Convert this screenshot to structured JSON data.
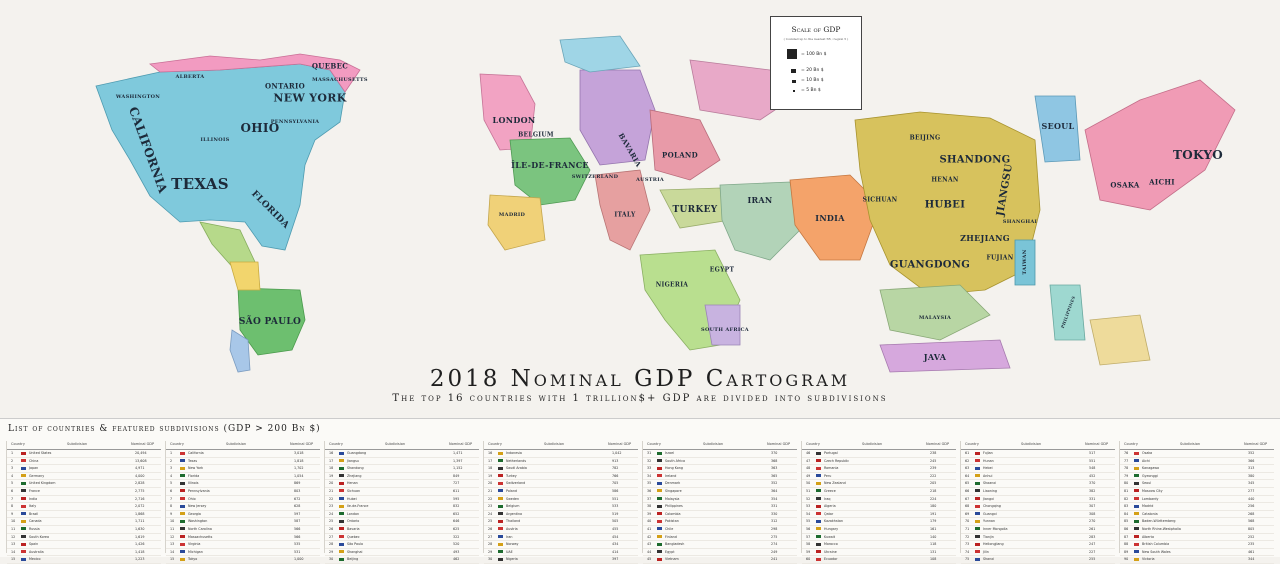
{
  "title": "2018 Nominal GDP Cartogram",
  "subtitle": "The top 16 countries with 1 trillion$+ GDP are divided into subdivisions",
  "legend": {
    "title": "Scale of GDP",
    "subtitle": "( rounded up to the nearest 5B ; region 5 )",
    "items": [
      "= 100 Bn $",
      "= 20 Bn $",
      "= 10 Bn $",
      "= 5 Bn $"
    ]
  },
  "regions": [
    {
      "name": "California",
      "color": "#7fc9dc"
    },
    {
      "name": "Texas",
      "color": "#7fc9dc"
    },
    {
      "name": "New York",
      "color": "#7fc9dc"
    },
    {
      "name": "Ohio",
      "color": "#7fc9dc"
    },
    {
      "name": "Florida",
      "color": "#7fc9dc"
    },
    {
      "name": "Washington",
      "color": "#7fc9dc"
    },
    {
      "name": "Illinois",
      "color": "#7fc9dc"
    },
    {
      "name": "Pennsylvania",
      "color": "#7fc9dc"
    },
    {
      "name": "Massachusetts",
      "color": "#7fc9dc"
    },
    {
      "name": "Ontario",
      "color": "#f29bc1"
    },
    {
      "name": "Quebec",
      "color": "#f29bc1"
    },
    {
      "name": "Alberta",
      "color": "#f29bc1"
    },
    {
      "name": "São Paulo",
      "color": "#6dbf6f"
    },
    {
      "name": "London",
      "color": "#f2a3c3"
    },
    {
      "name": "Île-de-France",
      "color": "#7bc47f"
    },
    {
      "name": "Bavaria",
      "color": "#c5a3d9"
    },
    {
      "name": "Belgium",
      "color": "#9fd09a"
    },
    {
      "name": "Switzerland",
      "color": "#b8d88c"
    },
    {
      "name": "Austria",
      "color": "#c7d6a4"
    },
    {
      "name": "Poland",
      "color": "#e89aa8"
    },
    {
      "name": "Italy",
      "color": "#e6a0a0"
    },
    {
      "name": "Madrid",
      "color": "#f0d178"
    },
    {
      "name": "Turkey",
      "color": "#c9d99a"
    },
    {
      "name": "Iran",
      "color": "#b2d3b8"
    },
    {
      "name": "Egypt",
      "color": "#c7dca5"
    },
    {
      "name": "Nigeria",
      "color": "#b9df8f"
    },
    {
      "name": "South Africa",
      "color": "#c8b3e0"
    },
    {
      "name": "India",
      "color": "#f4a36a"
    },
    {
      "name": "Beijing",
      "color": "#d7c25d"
    },
    {
      "name": "Shandong",
      "color": "#d7c25d"
    },
    {
      "name": "Jiangsu",
      "color": "#d7c25d"
    },
    {
      "name": "Zhejiang",
      "color": "#d7c25d"
    },
    {
      "name": "Guangdong",
      "color": "#d7c25d"
    },
    {
      "name": "Hubei",
      "color": "#d7c25d"
    },
    {
      "name": "Sichuan",
      "color": "#d7c25d"
    },
    {
      "name": "Henan",
      "color": "#d7c25d"
    },
    {
      "name": "Fujian",
      "color": "#d7c25d"
    },
    {
      "name": "Shanghai",
      "color": "#d7c25d"
    },
    {
      "name": "Seoul",
      "color": "#8fc6e3"
    },
    {
      "name": "Tokyo",
      "color": "#f09bb5"
    },
    {
      "name": "Osaka",
      "color": "#f09bb5"
    },
    {
      "name": "Aichi",
      "color": "#f09bb5"
    },
    {
      "name": "Taiwan",
      "color": "#7ac4d7"
    },
    {
      "name": "Java",
      "color": "#d6a8dd"
    },
    {
      "name": "Malaysia",
      "color": "#b8d6a4"
    },
    {
      "name": "Philippines",
      "color": "#9ed8d0"
    }
  ],
  "tables": {
    "heading": "List of countries & featured subdivisions (GDP > 200 Bn $)",
    "col_country": "Country",
    "col_subdivision": "Subdivision",
    "col_gdp": "Nominal GDP",
    "panels": [
      {
        "rows": [
          [
            "1",
            "United States",
            "20,494"
          ],
          [
            "2",
            "China",
            "13,608"
          ],
          [
            "3",
            "Japan",
            "4,971"
          ],
          [
            "4",
            "Germany",
            "4,000"
          ],
          [
            "5",
            "United Kingdom",
            "2,828"
          ],
          [
            "6",
            "France",
            "2,775"
          ],
          [
            "7",
            "India",
            "2,716"
          ],
          [
            "8",
            "Italy",
            "2,072"
          ],
          [
            "9",
            "Brazil",
            "1,868"
          ],
          [
            "10",
            "Canada",
            "1,711"
          ],
          [
            "11",
            "Russia",
            "1,630"
          ],
          [
            "12",
            "South Korea",
            "1,619"
          ],
          [
            "13",
            "Spain",
            "1,426"
          ],
          [
            "14",
            "Australia",
            "1,418"
          ],
          [
            "15",
            "Mexico",
            "1,223"
          ]
        ]
      },
      {
        "rows": [
          [
            "1",
            "California",
            "3,018"
          ],
          [
            "2",
            "Texas",
            "1,818"
          ],
          [
            "3",
            "New York",
            "1,702"
          ],
          [
            "4",
            "Florida",
            "1,054"
          ],
          [
            "5",
            "Illinois",
            "869"
          ],
          [
            "6",
            "Pennsylvania",
            "803"
          ],
          [
            "7",
            "Ohio",
            "672"
          ],
          [
            "8",
            "New Jersey",
            "628"
          ],
          [
            "9",
            "Georgia",
            "597"
          ],
          [
            "10",
            "Washington",
            "587"
          ],
          [
            "11",
            "North Carolina",
            "566"
          ],
          [
            "12",
            "Massachusetts",
            "566"
          ],
          [
            "13",
            "Virginia",
            "535"
          ],
          [
            "14",
            "Michigan",
            "531"
          ],
          [
            "15",
            "Tokyo",
            "1,000"
          ]
        ]
      },
      {
        "rows": [
          [
            "16",
            "Guangdong",
            "1,471"
          ],
          [
            "17",
            "Jiangsu",
            "1,397"
          ],
          [
            "18",
            "Shandong",
            "1,152"
          ],
          [
            "19",
            "Zhejiang",
            "849"
          ],
          [
            "20",
            "Henan",
            "727"
          ],
          [
            "21",
            "Sichuan",
            "611"
          ],
          [
            "22",
            "Hubei",
            "595"
          ],
          [
            "23",
            "Ile-de-France",
            "832"
          ],
          [
            "24",
            "London",
            "652"
          ],
          [
            "25",
            "Ontario",
            "646"
          ],
          [
            "26",
            "Bavaria",
            "625"
          ],
          [
            "27",
            "Quebec",
            "322"
          ],
          [
            "28",
            "São Paulo",
            "520"
          ],
          [
            "29",
            "Shanghai",
            "493"
          ],
          [
            "30",
            "Beijing",
            "462"
          ]
        ]
      },
      {
        "rows": [
          [
            "16",
            "Indonesia",
            "1,042"
          ],
          [
            "17",
            "Netherlands",
            "913"
          ],
          [
            "18",
            "Saudi Arabia",
            "782"
          ],
          [
            "19",
            "Turkey",
            "766"
          ],
          [
            "20",
            "Switzerland",
            "705"
          ],
          [
            "21",
            "Poland",
            "586"
          ],
          [
            "22",
            "Sweden",
            "551"
          ],
          [
            "23",
            "Belgium",
            "533"
          ],
          [
            "24",
            "Argentina",
            "519"
          ],
          [
            "25",
            "Thailand",
            "505"
          ],
          [
            "26",
            "Austria",
            "455"
          ],
          [
            "27",
            "Iran",
            "454"
          ],
          [
            "28",
            "Norway",
            "434"
          ],
          [
            "29",
            "UAE",
            "414"
          ],
          [
            "30",
            "Nigeria",
            "397"
          ]
        ]
      },
      {
        "rows": [
          [
            "31",
            "Israel",
            "370"
          ],
          [
            "32",
            "South Africa",
            "368"
          ],
          [
            "33",
            "Hong Kong",
            "363"
          ],
          [
            "34",
            "Ireland",
            "365"
          ],
          [
            "35",
            "Denmark",
            "352"
          ],
          [
            "36",
            "Singapore",
            "364"
          ],
          [
            "37",
            "Malaysia",
            "354"
          ],
          [
            "38",
            "Philippines",
            "331"
          ],
          [
            "39",
            "Colombia",
            "330"
          ],
          [
            "40",
            "Pakistan",
            "312"
          ],
          [
            "41",
            "Chile",
            "298"
          ],
          [
            "42",
            "Finland",
            "275"
          ],
          [
            "43",
            "Bangladesh",
            "274"
          ],
          [
            "44",
            "Egypt",
            "249"
          ],
          [
            "45",
            "Vietnam",
            "241"
          ]
        ]
      },
      {
        "rows": [
          [
            "46",
            "Portugal",
            "238"
          ],
          [
            "47",
            "Czech Republic",
            "245"
          ],
          [
            "48",
            "Romania",
            "239"
          ],
          [
            "49",
            "Peru",
            "222"
          ],
          [
            "50",
            "New Zealand",
            "205"
          ],
          [
            "51",
            "Greece",
            "218"
          ],
          [
            "52",
            "Iraq",
            "224"
          ],
          [
            "53",
            "Algeria",
            "180"
          ],
          [
            "54",
            "Qatar",
            "191"
          ],
          [
            "55",
            "Kazakhstan",
            "179"
          ],
          [
            "56",
            "Hungary",
            "161"
          ],
          [
            "57",
            "Kuwait",
            "140"
          ],
          [
            "58",
            "Morocco",
            "118"
          ],
          [
            "59",
            "Ukraine",
            "131"
          ],
          [
            "60",
            "Ecuador",
            "108"
          ]
        ]
      },
      {
        "rows": [
          [
            "61",
            "Fujian",
            "517"
          ],
          [
            "62",
            "Hunan",
            "551"
          ],
          [
            "63",
            "Hebei",
            "548"
          ],
          [
            "64",
            "Anhui",
            "452"
          ],
          [
            "65",
            "Shaanxi",
            "370"
          ],
          [
            "66",
            "Liaoning",
            "382"
          ],
          [
            "67",
            "Jiangxi",
            "331"
          ],
          [
            "68",
            "Chongqing",
            "307"
          ],
          [
            "69",
            "Guangxi",
            "308"
          ],
          [
            "70",
            "Yunnan",
            "270"
          ],
          [
            "71",
            "Inner Mongolia",
            "261"
          ],
          [
            "72",
            "Tianjin",
            "283"
          ],
          [
            "73",
            "Heilongjiang",
            "247"
          ],
          [
            "74",
            "Jilin",
            "227"
          ],
          [
            "75",
            "Shanxi",
            "255"
          ]
        ]
      },
      {
        "rows": [
          [
            "76",
            "Osaka",
            "352"
          ],
          [
            "77",
            "Aichi",
            "366"
          ],
          [
            "78",
            "Kanagawa",
            "313"
          ],
          [
            "79",
            "Gyeonggi",
            "380"
          ],
          [
            "80",
            "Seoul",
            "345"
          ],
          [
            "81",
            "Moscow City",
            "277"
          ],
          [
            "82",
            "Lombardy",
            "440"
          ],
          [
            "83",
            "Madrid",
            "256"
          ],
          [
            "84",
            "Catalonia",
            "268"
          ],
          [
            "85",
            "Baden-Württemberg",
            "568"
          ],
          [
            "86",
            "North Rhine-Westphalia",
            "805"
          ],
          [
            "87",
            "Alberta",
            "252"
          ],
          [
            "88",
            "British Columbia",
            "235"
          ],
          [
            "89",
            "New South Wales",
            "461"
          ],
          [
            "90",
            "Victoria",
            "344"
          ]
        ]
      }
    ]
  }
}
